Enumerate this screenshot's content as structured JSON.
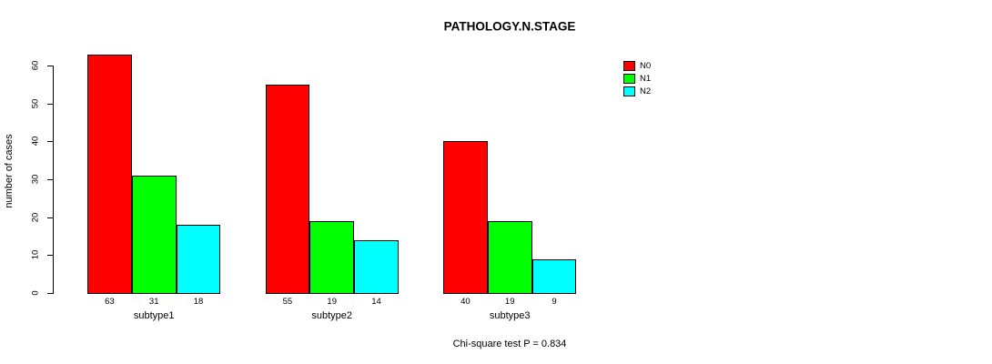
{
  "title": "PATHOLOGY.N.STAGE",
  "footnote": "Chi-square test P = 0.834",
  "chart_data": {
    "type": "bar",
    "grouped": true,
    "categories": [
      "subtype1",
      "subtype2",
      "subtype3"
    ],
    "series": [
      {
        "name": "N0",
        "color": "#FF0000",
        "values": [
          63,
          55,
          40
        ]
      },
      {
        "name": "N1",
        "color": "#00FF00",
        "values": [
          31,
          19,
          19
        ]
      },
      {
        "name": "N2",
        "color": "#00FFFF",
        "values": [
          18,
          14,
          9
        ]
      }
    ],
    "title": "PATHOLOGY.N.STAGE",
    "xlabel": "",
    "ylabel": "number of cases",
    "ylim": [
      0,
      60
    ],
    "yticks": [
      0,
      10,
      20,
      30,
      40,
      50,
      60
    ],
    "bar_value_labels": [
      [
        63,
        31,
        18
      ],
      [
        55,
        19,
        14
      ],
      [
        40,
        19,
        9
      ]
    ],
    "annotation": "Chi-square test P = 0.834",
    "legend_position": "top-right",
    "grid": false,
    "background": "#ffffff"
  }
}
